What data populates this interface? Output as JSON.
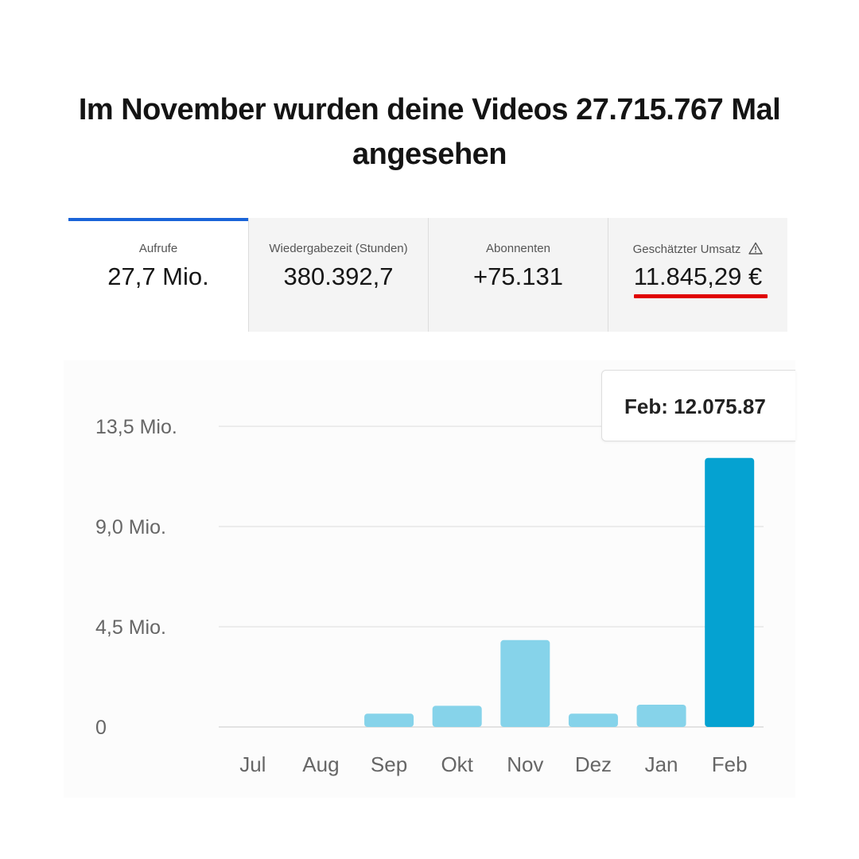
{
  "headline": "Im November wurden deine Videos 27.715.767 Mal angesehen",
  "metrics": [
    {
      "label": "Aufrufe",
      "value": "27,7 Mio."
    },
    {
      "label": "Wiedergabezeit (Stunden)",
      "value": "380.392,7"
    },
    {
      "label": "Abonnenten",
      "value": "+75.131"
    },
    {
      "label": "Geschätzter Umsatz",
      "value": "11.845,29 €",
      "icon": "warning-icon"
    }
  ],
  "colors": {
    "active_tab_indicator": "#1a64d8",
    "highlight_underline": "#e00000",
    "bar": "#86d3ea",
    "bar_selected": "#05a2d1"
  },
  "chart_data": {
    "type": "bar",
    "categories": [
      "Jul",
      "Aug",
      "Sep",
      "Okt",
      "Nov",
      "Dez",
      "Jan",
      "Feb"
    ],
    "values": [
      0,
      0,
      0.6,
      0.95,
      3.9,
      0.6,
      1.0,
      12.08
    ],
    "y_ticks": [
      "0",
      "4,5 Mio.",
      "9,0 Mio.",
      "13,5 Mio."
    ],
    "y_tick_values": [
      0,
      4.5,
      9.0,
      13.5
    ],
    "ylim": [
      0,
      13.5
    ],
    "grid": true,
    "selected_category": "Feb",
    "tooltip": "Feb: 12.075.87"
  }
}
